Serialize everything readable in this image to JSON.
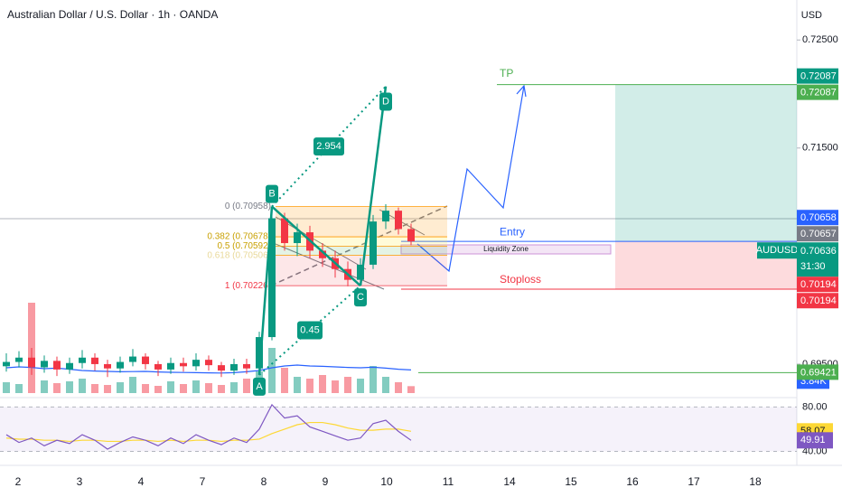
{
  "header": {
    "title": "Australian Dollar / U.S. Dollar · 1h · OANDA",
    "currency": "USD"
  },
  "chart_data": {
    "type": "candlestick",
    "ylim": [
      0.6919,
      0.7287
    ],
    "yticks": [
      {
        "value": 0.725,
        "label": "0.72500"
      },
      {
        "value": 0.72,
        "label": "0.72000"
      },
      {
        "value": 0.715,
        "label": "0.71500"
      },
      {
        "value": 0.695,
        "label": "0.69500"
      }
    ],
    "x_labels": [
      "2",
      "3",
      "4",
      "7",
      "8",
      "9",
      "10",
      "11",
      "14",
      "15",
      "16",
      "17",
      "18"
    ],
    "up_color": "#089981",
    "down_color": "#f23645",
    "open": [
      0.6948,
      0.6952,
      0.6956,
      0.6947,
      0.6953,
      0.6945,
      0.6951,
      0.6956,
      0.695,
      0.6946,
      0.6952,
      0.6957,
      0.695,
      0.6945,
      0.6951,
      0.6948,
      0.6954,
      0.6949,
      0.6944,
      0.695,
      0.6946,
      0.6975,
      0.7085,
      0.7062,
      0.7072,
      0.7055,
      0.7048,
      0.7038,
      0.7028,
      0.7042,
      0.7082,
      0.7092,
      0.7075
    ],
    "high": [
      0.696,
      0.6962,
      0.6965,
      0.6958,
      0.6957,
      0.6956,
      0.6963,
      0.696,
      0.6954,
      0.6957,
      0.6964,
      0.696,
      0.6953,
      0.6956,
      0.6956,
      0.696,
      0.6958,
      0.6952,
      0.6955,
      0.6955,
      0.698,
      0.7096,
      0.709,
      0.708,
      0.7078,
      0.7062,
      0.7055,
      0.7045,
      0.7048,
      0.7088,
      0.7098,
      0.7095,
      0.708
    ],
    "low": [
      0.6943,
      0.6947,
      0.694,
      0.6942,
      0.6939,
      0.6941,
      0.6946,
      0.6944,
      0.6938,
      0.6942,
      0.6948,
      0.6945,
      0.6939,
      0.6941,
      0.6943,
      0.6944,
      0.6944,
      0.6938,
      0.694,
      0.6941,
      0.694,
      0.6972,
      0.7055,
      0.705,
      0.7048,
      0.704,
      0.703,
      0.7022,
      0.7023,
      0.7038,
      0.7075,
      0.707,
      0.706
    ],
    "close": [
      0.6952,
      0.6956,
      0.6947,
      0.6953,
      0.6945,
      0.6951,
      0.6956,
      0.695,
      0.6946,
      0.6952,
      0.6957,
      0.695,
      0.6945,
      0.6951,
      0.6948,
      0.6954,
      0.6949,
      0.6944,
      0.695,
      0.6946,
      0.6975,
      0.7085,
      0.7062,
      0.7072,
      0.7055,
      0.7048,
      0.7038,
      0.7028,
      0.7042,
      0.7082,
      0.7092,
      0.7075,
      0.70636
    ],
    "symbol": "AUDUSD",
    "countdown": "31:30",
    "axis_labels": [
      {
        "value": 0.72087,
        "color": "#089981"
      },
      {
        "value": 0.72087,
        "color": "#4caf50"
      },
      {
        "value": 0.70658,
        "color": "#2962ff"
      },
      {
        "value": 0.70657,
        "color": "#787b86"
      },
      {
        "value": 0.70194,
        "color": "#f23645"
      },
      {
        "value": 0.70194,
        "color": "#f23645"
      },
      {
        "value": 0.69421,
        "color": "#4caf50"
      }
    ],
    "volume": {
      "values": [
        6000,
        5000,
        50000,
        7000,
        5500,
        6500,
        8000,
        5000,
        4500,
        6000,
        9000,
        5000,
        4000,
        6500,
        5000,
        7000,
        5500,
        4500,
        6000,
        8000,
        12000,
        25000,
        14000,
        9000,
        8000,
        10000,
        7000,
        9000,
        8000,
        15000,
        9000,
        6000,
        3840
      ],
      "ma": [
        9000,
        9500,
        9200,
        8500,
        8800,
        8200,
        7500,
        7200,
        7000,
        6800,
        6900,
        7000,
        6700,
        6500,
        6400,
        6300,
        6200,
        6100,
        6300,
        6800,
        7500,
        9000,
        10000,
        10500,
        10000,
        9800,
        9500,
        9200,
        9000,
        9300,
        8800,
        8200,
        7800
      ],
      "ylim": [
        0,
        60000
      ],
      "last_label": "3.84K",
      "color": "#2962ff"
    },
    "rsi": {
      "values": [
        55,
        48,
        52,
        45,
        50,
        47,
        55,
        50,
        42,
        48,
        53,
        50,
        45,
        52,
        47,
        55,
        50,
        46,
        52,
        48,
        60,
        82,
        70,
        72,
        62,
        58,
        54,
        50,
        52,
        65,
        68,
        58,
        49.91
      ],
      "ma": [
        52,
        51,
        51,
        50,
        50,
        49,
        50,
        50,
        49,
        49,
        50,
        50,
        49,
        50,
        49,
        50,
        50,
        49,
        50,
        50,
        51,
        56,
        60,
        64,
        66,
        66,
        64,
        61,
        59,
        59,
        60,
        60,
        58.07
      ],
      "ylim": [
        29.8,
        86.8
      ],
      "yticks": [
        {
          "value": 80,
          "label": "80.00"
        },
        {
          "value": 40,
          "label": "40.00"
        }
      ]
    },
    "fib": [
      {
        "value": 0.70958,
        "label": "0 (0.70958)"
      },
      {
        "value": 0.70678,
        "label": "0.382 (0.70678)"
      },
      {
        "value": 0.70592,
        "label": "0.5 (0.70592)"
      },
      {
        "value": 0.70506,
        "label": "0.618 (0.70506)"
      },
      {
        "value": 0.70226,
        "label": "1 (0.70226)"
      }
    ],
    "pattern": {
      "color": "#089981",
      "points": [
        {
          "label": "A",
          "bar": 20,
          "price": 0.694
        },
        {
          "label": "B",
          "bar": 21,
          "price": 0.70958
        },
        {
          "label": "C",
          "bar": 28,
          "price": 0.70226
        },
        {
          "label": "D",
          "bar": 30,
          "price": 0.7207
        }
      ],
      "ratios": [
        2.954,
        0.45
      ]
    },
    "trade": {
      "tp_label": "TP",
      "tp": 0.72087,
      "entry_label": "Entry",
      "entry": 0.70636,
      "stop_label": "Stoploss",
      "stop": 0.70194,
      "zone_label": "Liquidity Zone"
    }
  }
}
